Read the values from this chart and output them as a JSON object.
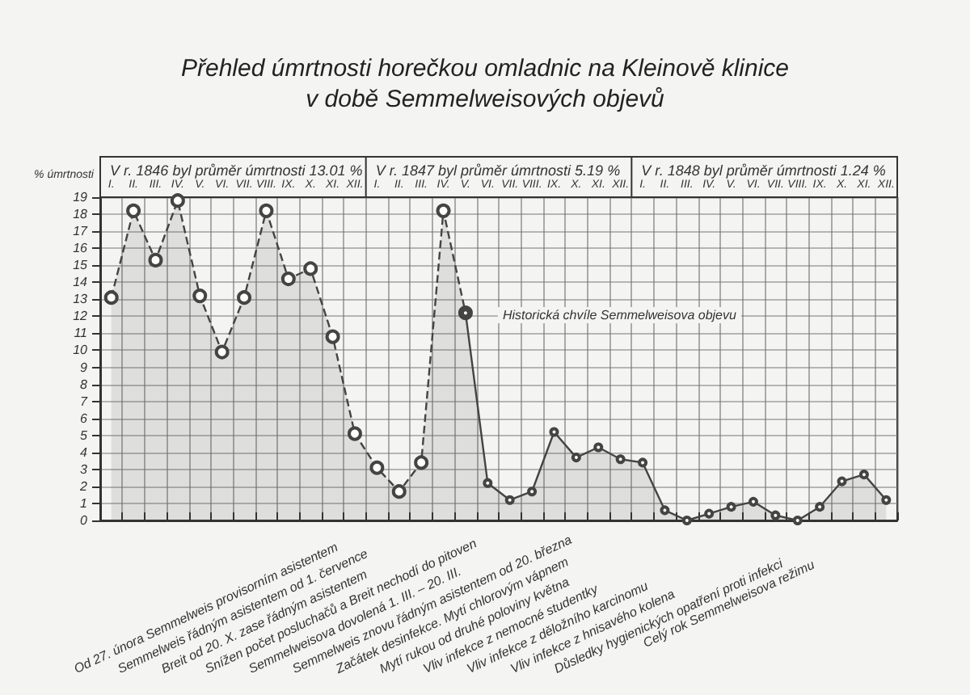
{
  "chart_data": {
    "type": "area",
    "title": "Přehled úmrtnosti horečkou omladnic na Kleinově klinice\nv době Semmelweisových objevů",
    "ylabel": "% úmrtnosti",
    "categories": [
      "I.",
      "II.",
      "III.",
      "IV.",
      "V.",
      "VI.",
      "VII.",
      "VIII.",
      "IX.",
      "X.",
      "XI.",
      "XII.",
      "I.",
      "II.",
      "III.",
      "IV.",
      "V.",
      "VI.",
      "VII.",
      "VIII.",
      "IX.",
      "X.",
      "XI.",
      "XII.",
      "I.",
      "II.",
      "III.",
      "IV.",
      "V.",
      "VI.",
      "VII.",
      "VIII.",
      "IX.",
      "X.",
      "XI.",
      "XII."
    ],
    "series": [
      {
        "color": "#444444",
        "line_style": "dashed",
        "values": [
          13.1,
          18.2,
          15.3,
          18.8,
          13.2,
          9.9,
          13.1,
          18.2,
          14.2,
          14.8,
          10.8,
          5.1,
          3.1,
          1.7,
          3.4,
          18.2,
          12.2,
          null,
          null,
          null,
          null,
          null,
          null,
          null,
          null,
          null,
          null,
          null,
          null,
          null,
          null,
          null,
          null,
          null,
          null,
          null
        ]
      },
      {
        "color": "#444444",
        "line_style": "solid",
        "values": [
          null,
          null,
          null,
          null,
          null,
          null,
          null,
          null,
          null,
          null,
          null,
          null,
          null,
          null,
          null,
          null,
          12.2,
          2.2,
          1.2,
          1.7,
          5.2,
          3.7,
          4.3,
          3.6,
          3.4,
          0.6,
          0,
          0.4,
          0.8,
          1.1,
          0.3,
          0,
          0.8,
          2.3,
          2.7,
          1.2
        ]
      }
    ],
    "ylim": [
      0,
      19
    ],
    "yticks": [
      0,
      1,
      2,
      3,
      4,
      5,
      6,
      7,
      8,
      9,
      10,
      11,
      12,
      13,
      14,
      15,
      16,
      17,
      18,
      19
    ],
    "grid": true,
    "marker": "circle",
    "annotations": [
      "V r. 1846 byl průměr úmrtnosti 13.01 %",
      "V r. 1847 byl průměr úmrtnosti 5.19 %",
      "V r. 1848 byl průměr úmrtnosti 1.24 %",
      "Historická chvíle Semmelweisova objevu",
      "Od 27. února Semmelweis provisorním asistentem",
      "Semmelweis řádným asistentem od 1. července",
      "Breit od 20. X. zase řádným asistentem",
      "Snížen počet posluchačů a Breit nechodí do pitoven",
      "Semmelweisova dovolená 1. III. – 20. III.",
      "Semmelweis znovu řádným asistentem od 20. března",
      "Začátek desinfekce. Mytí chlorovým vápnem",
      "Mytí rukou od druhé poloviny května",
      "Vliv infekce z nemocné studentky",
      "Vliv infekce z děložního karcinomu",
      "Vliv infekce z hnisavého kolena",
      "Důsledky hygienických opatření proti infekci",
      "Celý rok Semmelweisova režimu"
    ]
  }
}
